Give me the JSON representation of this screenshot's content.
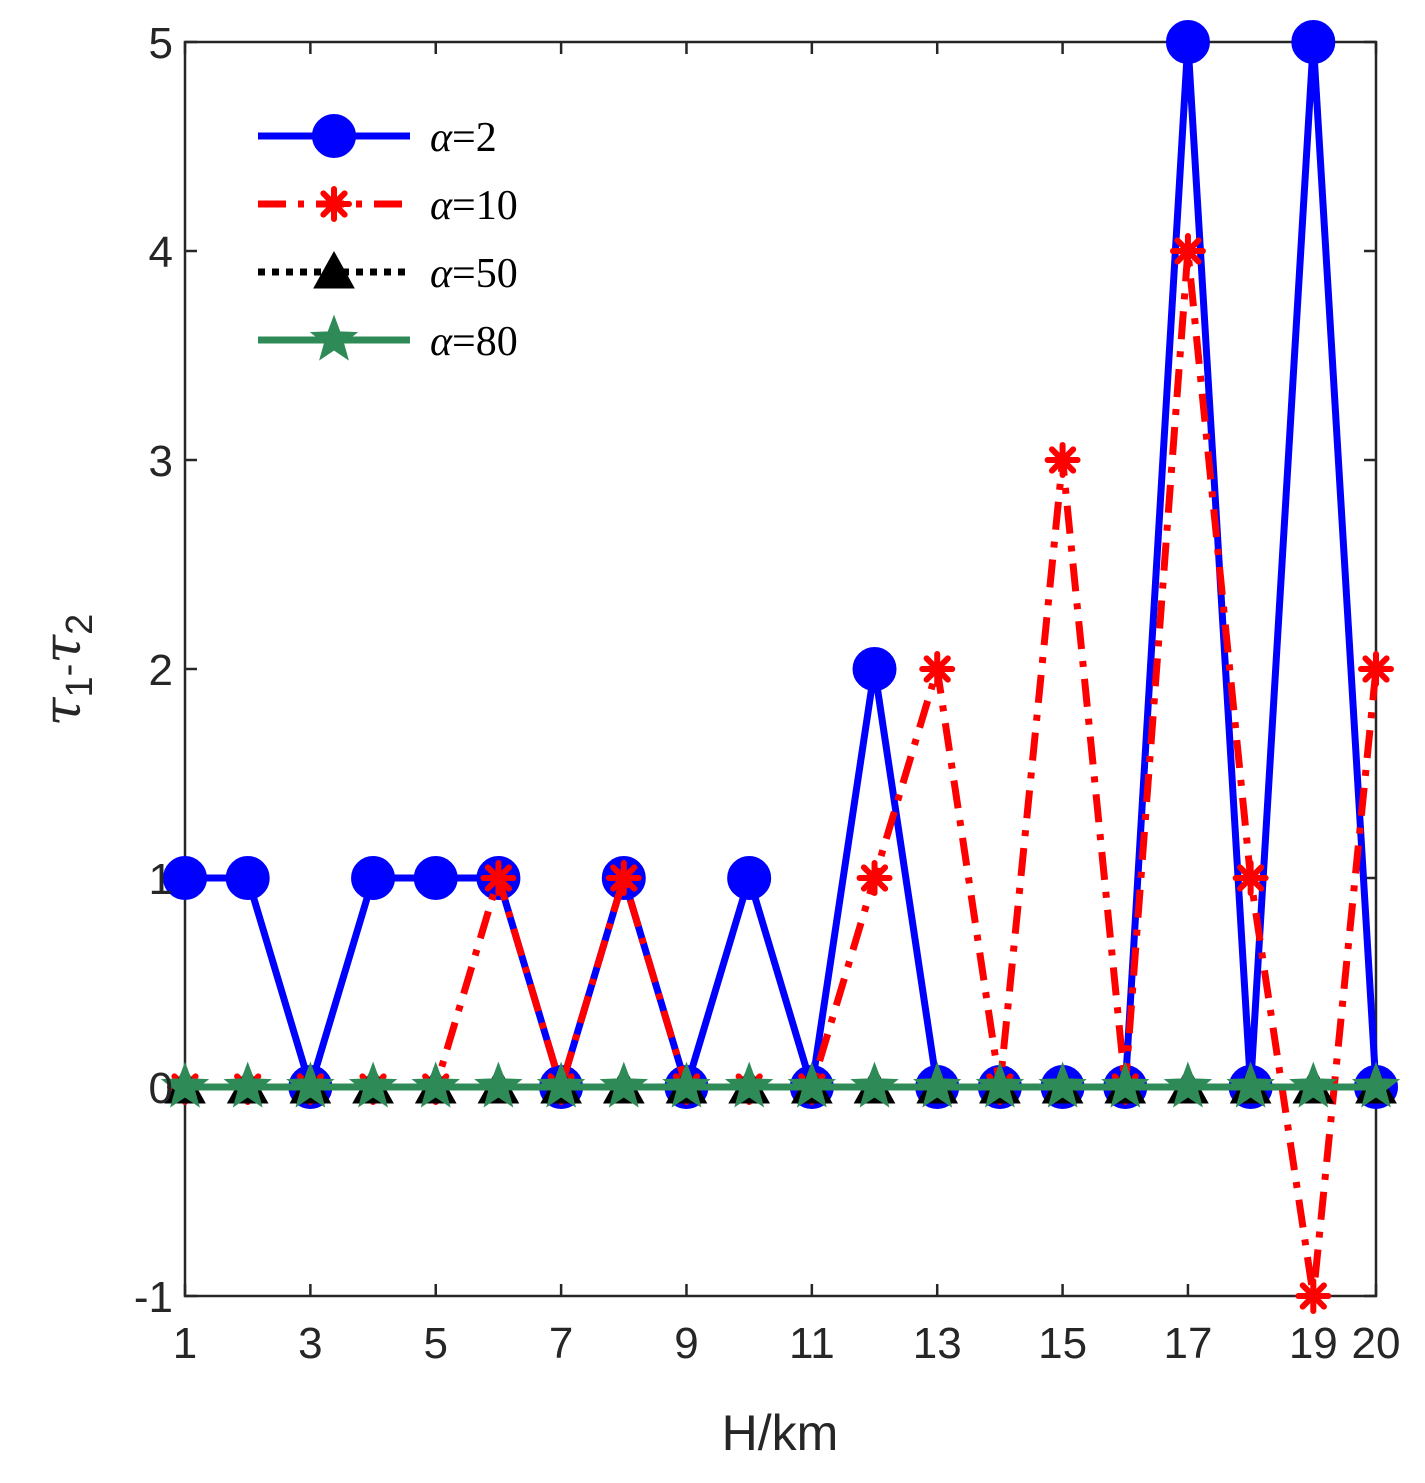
{
  "chart_data": {
    "type": "line",
    "xlabel": "H/km",
    "ylabel": {
      "tau": "τ",
      "sub1": "1",
      "minus": "-",
      "sub2": "2"
    },
    "x": [
      1,
      2,
      3,
      4,
      5,
      6,
      7,
      8,
      9,
      10,
      11,
      12,
      13,
      14,
      15,
      16,
      17,
      18,
      19,
      20
    ],
    "xlim": [
      1,
      20
    ],
    "ylim": [
      -1,
      5
    ],
    "xticks": [
      1,
      3,
      5,
      7,
      9,
      11,
      13,
      15,
      17,
      19,
      20
    ],
    "xtick_labels": [
      "1",
      "3",
      "5",
      "7",
      "9",
      "11",
      "13",
      "15",
      "17",
      "19",
      "20"
    ],
    "yticks": [
      -1,
      0,
      1,
      2,
      3,
      4,
      5
    ],
    "ytick_labels": [
      "-1",
      "0",
      "1",
      "2",
      "3",
      "4",
      "5"
    ],
    "grid": false,
    "legend_position": "top-left",
    "series": [
      {
        "name": "α=2",
        "alpha": "α",
        "value_text": "=2",
        "color": "#0000FF",
        "marker": "circle",
        "line": "solid",
        "values": [
          1,
          1,
          0,
          1,
          1,
          1,
          0,
          1,
          0,
          1,
          0,
          2,
          0,
          0,
          0,
          0,
          5,
          0,
          5,
          0
        ]
      },
      {
        "name": "α=10",
        "alpha": "α",
        "value_text": "=10",
        "color": "#FF0000",
        "marker": "asterisk",
        "line": "dashdot",
        "values": [
          0,
          0,
          0,
          0,
          0,
          1,
          0,
          1,
          0,
          0,
          0,
          1,
          2,
          0,
          3,
          0,
          4,
          1,
          -1,
          2
        ]
      },
      {
        "name": "α=50",
        "alpha": "α",
        "value_text": "=50",
        "color": "#000000",
        "marker": "triangle",
        "line": "dotted",
        "values": [
          0,
          0,
          0,
          0,
          0,
          0,
          0,
          0,
          0,
          0,
          0,
          0,
          0,
          0,
          0,
          0,
          0,
          0,
          0,
          0
        ]
      },
      {
        "name": "α=80",
        "alpha": "α",
        "value_text": "=80",
        "color": "#2E8B57",
        "marker": "star",
        "line": "solid",
        "values": [
          0,
          0,
          0,
          0,
          0,
          0,
          0,
          0,
          0,
          0,
          0,
          0,
          0,
          0,
          0,
          0,
          0,
          0,
          0,
          0
        ]
      }
    ]
  }
}
